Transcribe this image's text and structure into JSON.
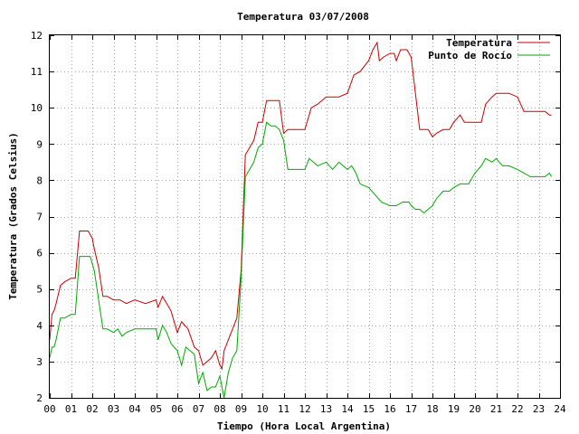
{
  "chart_data": {
    "type": "line",
    "title": "Temperatura 03/07/2008",
    "xlabel": "Tiempo (Hora Local Argentina)",
    "ylabel": "Temperatura (Grados Celsius)",
    "xlim": [
      0,
      24
    ],
    "ylim": [
      2,
      12
    ],
    "xticks": [
      0,
      1,
      2,
      3,
      4,
      5,
      6,
      7,
      8,
      9,
      10,
      11,
      12,
      13,
      14,
      15,
      16,
      17,
      18,
      19,
      20,
      21,
      22,
      23,
      24
    ],
    "xtick_labels": [
      "00",
      "01",
      "02",
      "03",
      "04",
      "05",
      "06",
      "07",
      "08",
      "09",
      "10",
      "11",
      "12",
      "13",
      "14",
      "15",
      "16",
      "17",
      "18",
      "19",
      "20",
      "21",
      "22",
      "23",
      "24"
    ],
    "yticks": [
      2,
      3,
      4,
      5,
      6,
      7,
      8,
      9,
      10,
      11,
      12
    ],
    "ytick_labels": [
      "2",
      "3",
      "4",
      "5",
      "6",
      "7",
      "8",
      "9",
      "10",
      "11",
      "12"
    ],
    "grid": true,
    "legend_position": "top-right",
    "series": [
      {
        "name": "Temperatura",
        "color": "#cc0000",
        "x": [
          0.0,
          0.1,
          0.2,
          0.3,
          0.5,
          0.7,
          1.0,
          1.2,
          1.4,
          1.5,
          1.6,
          1.8,
          1.9,
          2.0,
          2.1,
          2.3,
          2.5,
          2.7,
          3.0,
          3.3,
          3.6,
          4.0,
          4.5,
          5.0,
          5.1,
          5.3,
          5.5,
          5.7,
          6.0,
          6.2,
          6.5,
          6.8,
          7.0,
          7.2,
          7.4,
          7.6,
          7.8,
          8.0,
          8.1,
          8.2,
          8.4,
          8.6,
          8.8,
          9.0,
          9.2,
          9.4,
          9.6,
          9.8,
          10.0,
          10.2,
          10.4,
          10.6,
          10.8,
          11.0,
          11.2,
          11.5,
          12.0,
          12.3,
          12.6,
          13.0,
          13.3,
          13.6,
          14.0,
          14.3,
          14.6,
          15.0,
          15.2,
          15.4,
          15.5,
          15.7,
          16.0,
          16.2,
          16.3,
          16.5,
          16.8,
          17.0,
          17.2,
          17.4,
          17.6,
          17.8,
          18.0,
          18.2,
          18.5,
          18.8,
          19.0,
          19.3,
          19.5,
          19.7,
          20.0,
          20.3,
          20.5,
          20.8,
          21.0,
          21.3,
          21.6,
          22.0,
          22.3,
          22.6,
          23.0,
          23.3,
          23.5,
          23.6
        ],
        "y": [
          3.6,
          4.3,
          4.4,
          4.6,
          5.1,
          5.2,
          5.3,
          5.3,
          6.6,
          6.6,
          6.6,
          6.6,
          6.5,
          6.4,
          6.1,
          5.6,
          4.8,
          4.8,
          4.7,
          4.7,
          4.6,
          4.7,
          4.6,
          4.7,
          4.5,
          4.8,
          4.6,
          4.4,
          3.8,
          4.1,
          3.9,
          3.4,
          3.3,
          2.9,
          3.0,
          3.1,
          3.3,
          2.9,
          2.8,
          3.3,
          3.6,
          3.9,
          4.2,
          5.5,
          8.7,
          8.9,
          9.1,
          9.6,
          9.6,
          10.2,
          10.2,
          10.2,
          10.2,
          9.3,
          9.4,
          9.4,
          9.4,
          10.0,
          10.1,
          10.3,
          10.3,
          10.3,
          10.4,
          10.9,
          11.0,
          11.3,
          11.6,
          11.8,
          11.3,
          11.4,
          11.5,
          11.5,
          11.3,
          11.6,
          11.6,
          11.4,
          10.4,
          9.4,
          9.4,
          9.4,
          9.2,
          9.3,
          9.4,
          9.4,
          9.6,
          9.8,
          9.6,
          9.6,
          9.6,
          9.6,
          10.1,
          10.3,
          10.4,
          10.4,
          10.4,
          10.3,
          9.9,
          9.9,
          9.9,
          9.9,
          9.8,
          9.8
        ]
      },
      {
        "name": "Punto de Rocío",
        "color": "#00aa00",
        "x": [
          0.0,
          0.1,
          0.2,
          0.3,
          0.5,
          0.7,
          1.0,
          1.2,
          1.4,
          1.5,
          1.6,
          1.8,
          1.9,
          2.0,
          2.1,
          2.3,
          2.5,
          2.7,
          3.0,
          3.2,
          3.4,
          3.6,
          4.0,
          4.3,
          4.6,
          5.0,
          5.1,
          5.3,
          5.5,
          5.7,
          6.0,
          6.2,
          6.4,
          6.6,
          6.8,
          7.0,
          7.2,
          7.4,
          7.6,
          7.8,
          8.0,
          8.1,
          8.2,
          8.4,
          8.6,
          8.8,
          9.0,
          9.2,
          9.4,
          9.6,
          9.8,
          10.0,
          10.2,
          10.4,
          10.6,
          10.8,
          11.0,
          11.2,
          11.5,
          12.0,
          12.2,
          12.4,
          12.6,
          13.0,
          13.3,
          13.6,
          14.0,
          14.2,
          14.4,
          14.6,
          15.0,
          15.3,
          15.6,
          16.0,
          16.3,
          16.6,
          16.9,
          17.0,
          17.2,
          17.4,
          17.6,
          17.8,
          18.0,
          18.2,
          18.5,
          18.8,
          19.0,
          19.3,
          19.5,
          19.7,
          20.0,
          20.3,
          20.5,
          20.8,
          21.0,
          21.3,
          21.6,
          22.0,
          22.3,
          22.6,
          23.0,
          23.3,
          23.5,
          23.6
        ],
        "y": [
          3.1,
          3.4,
          3.4,
          3.6,
          4.2,
          4.2,
          4.3,
          4.3,
          5.9,
          5.9,
          5.9,
          5.9,
          5.9,
          5.7,
          5.5,
          4.7,
          3.9,
          3.9,
          3.8,
          3.9,
          3.7,
          3.8,
          3.9,
          3.9,
          3.9,
          3.9,
          3.6,
          4.0,
          3.8,
          3.5,
          3.3,
          2.9,
          3.4,
          3.3,
          3.2,
          2.4,
          2.7,
          2.2,
          2.3,
          2.3,
          2.6,
          2.3,
          2.0,
          2.7,
          3.1,
          3.3,
          5.3,
          8.1,
          8.3,
          8.5,
          8.9,
          9.0,
          9.6,
          9.5,
          9.5,
          9.4,
          9.1,
          8.3,
          8.3,
          8.3,
          8.6,
          8.5,
          8.4,
          8.5,
          8.3,
          8.5,
          8.3,
          8.4,
          8.2,
          7.9,
          7.8,
          7.6,
          7.4,
          7.3,
          7.3,
          7.4,
          7.4,
          7.3,
          7.2,
          7.2,
          7.1,
          7.2,
          7.3,
          7.5,
          7.7,
          7.7,
          7.8,
          7.9,
          7.9,
          7.9,
          8.2,
          8.4,
          8.6,
          8.5,
          8.6,
          8.4,
          8.4,
          8.3,
          8.2,
          8.1,
          8.1,
          8.1,
          8.2,
          8.1
        ]
      }
    ]
  }
}
